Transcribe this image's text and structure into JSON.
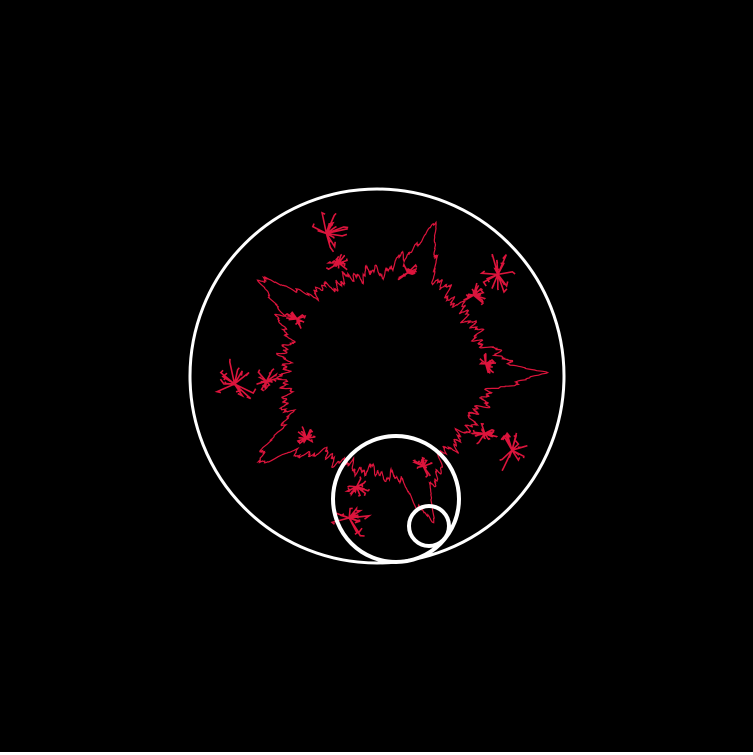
{
  "scene": {
    "background": "#000000",
    "circle_color": "#ffffff",
    "curve_color": "#dc143c",
    "curve_arms": 5,
    "nested_circles": 3
  }
}
